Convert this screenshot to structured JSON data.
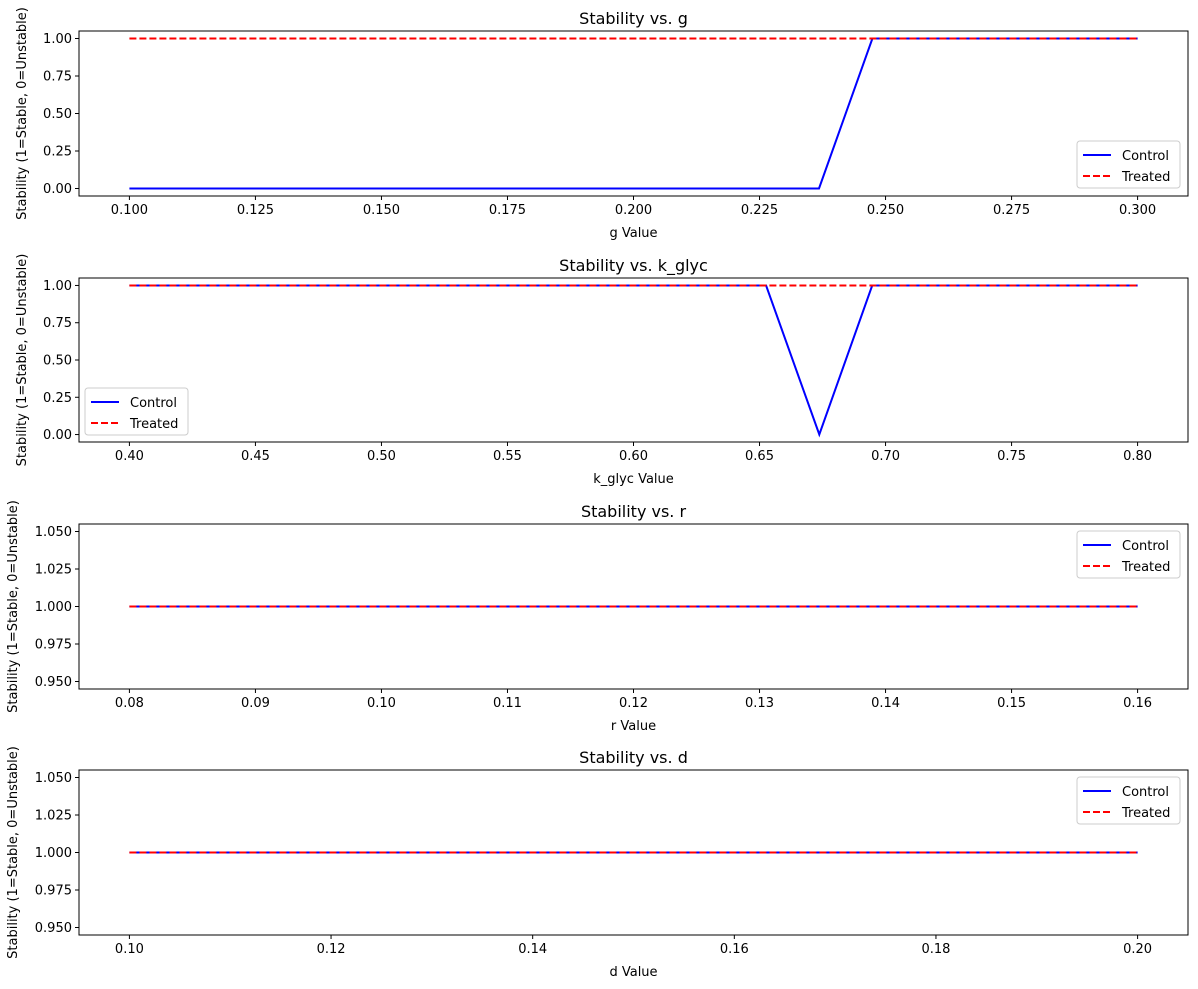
{
  "chart_data": [
    {
      "type": "line",
      "title": "Stability vs. g",
      "xlabel": "g Value",
      "ylabel": "Stability (1=Stable, 0=Unstable)",
      "xlim": [
        0.09,
        0.31
      ],
      "ylim": [
        -0.05,
        1.05
      ],
      "xticks": [
        0.1,
        0.125,
        0.15,
        0.175,
        0.2,
        0.225,
        0.25,
        0.275,
        0.3
      ],
      "xtick_labels": [
        "0.100",
        "0.125",
        "0.150",
        "0.175",
        "0.200",
        "0.225",
        "0.250",
        "0.275",
        "0.300"
      ],
      "yticks": [
        0,
        0.25,
        0.5,
        0.75,
        1.0
      ],
      "ytick_labels": [
        "0.00",
        "0.25",
        "0.50",
        "0.75",
        "1.00"
      ],
      "grid": false,
      "legend_position": "lower-right",
      "series": [
        {
          "name": "Control",
          "color": "#0000ff",
          "style": "solid",
          "x": [
            0.1,
            0.2368,
            0.2474,
            0.3
          ],
          "y": [
            0,
            0,
            1,
            1
          ]
        },
        {
          "name": "Treated",
          "color": "#ff0000",
          "style": "dashed",
          "x": [
            0.1,
            0.3
          ],
          "y": [
            1,
            1
          ]
        }
      ]
    },
    {
      "type": "line",
      "title": "Stability vs. k_glyc",
      "xlabel": "k_glyc Value",
      "ylabel": "Stability (1=Stable, 0=Unstable)",
      "xlim": [
        0.38,
        0.82
      ],
      "ylim": [
        -0.05,
        1.05
      ],
      "xticks": [
        0.4,
        0.45,
        0.5,
        0.55,
        0.6,
        0.65,
        0.7,
        0.75,
        0.8
      ],
      "xtick_labels": [
        "0.40",
        "0.45",
        "0.50",
        "0.55",
        "0.60",
        "0.65",
        "0.70",
        "0.75",
        "0.80"
      ],
      "yticks": [
        0,
        0.25,
        0.5,
        0.75,
        1.0
      ],
      "ytick_labels": [
        "0.00",
        "0.25",
        "0.50",
        "0.75",
        "1.00"
      ],
      "grid": false,
      "legend_position": "lower-left",
      "series": [
        {
          "name": "Control",
          "color": "#0000ff",
          "style": "solid",
          "x": [
            0.4,
            0.6526,
            0.6737,
            0.6947,
            0.8
          ],
          "y": [
            1,
            1,
            0,
            1,
            1
          ]
        },
        {
          "name": "Treated",
          "color": "#ff0000",
          "style": "dashed",
          "x": [
            0.4,
            0.8
          ],
          "y": [
            1,
            1
          ]
        }
      ]
    },
    {
      "type": "line",
      "title": "Stability vs. r",
      "xlabel": "r Value",
      "ylabel": "Stability (1=Stable, 0=Unstable)",
      "xlim": [
        0.076,
        0.164
      ],
      "ylim": [
        0.945,
        1.055
      ],
      "xticks": [
        0.08,
        0.09,
        0.1,
        0.11,
        0.12,
        0.13,
        0.14,
        0.15,
        0.16
      ],
      "xtick_labels": [
        "0.08",
        "0.09",
        "0.10",
        "0.11",
        "0.12",
        "0.13",
        "0.14",
        "0.15",
        "0.16"
      ],
      "yticks": [
        0.95,
        0.975,
        1.0,
        1.025,
        1.05
      ],
      "ytick_labels": [
        "0.950",
        "0.975",
        "1.000",
        "1.025",
        "1.050"
      ],
      "grid": false,
      "legend_position": "upper-right",
      "series": [
        {
          "name": "Control",
          "color": "#0000ff",
          "style": "solid",
          "x": [
            0.08,
            0.16
          ],
          "y": [
            1,
            1
          ]
        },
        {
          "name": "Treated",
          "color": "#ff0000",
          "style": "dashed",
          "x": [
            0.08,
            0.16
          ],
          "y": [
            1,
            1
          ]
        }
      ]
    },
    {
      "type": "line",
      "title": "Stability vs. d",
      "xlabel": "d Value",
      "ylabel": "Stability (1=Stable, 0=Unstable)",
      "xlim": [
        0.095,
        0.205
      ],
      "ylim": [
        0.945,
        1.055
      ],
      "xticks": [
        0.1,
        0.12,
        0.14,
        0.16,
        0.18,
        0.2
      ],
      "xtick_labels": [
        "0.10",
        "0.12",
        "0.14",
        "0.16",
        "0.18",
        "0.20"
      ],
      "yticks": [
        0.95,
        0.975,
        1.0,
        1.025,
        1.05
      ],
      "ytick_labels": [
        "0.950",
        "0.975",
        "1.000",
        "1.025",
        "1.050"
      ],
      "grid": false,
      "legend_position": "upper-right",
      "series": [
        {
          "name": "Control",
          "color": "#0000ff",
          "style": "solid",
          "x": [
            0.1,
            0.2
          ],
          "y": [
            1,
            1
          ]
        },
        {
          "name": "Treated",
          "color": "#ff0000",
          "style": "dashed",
          "x": [
            0.1,
            0.2
          ],
          "y": [
            1,
            1
          ]
        }
      ]
    }
  ]
}
